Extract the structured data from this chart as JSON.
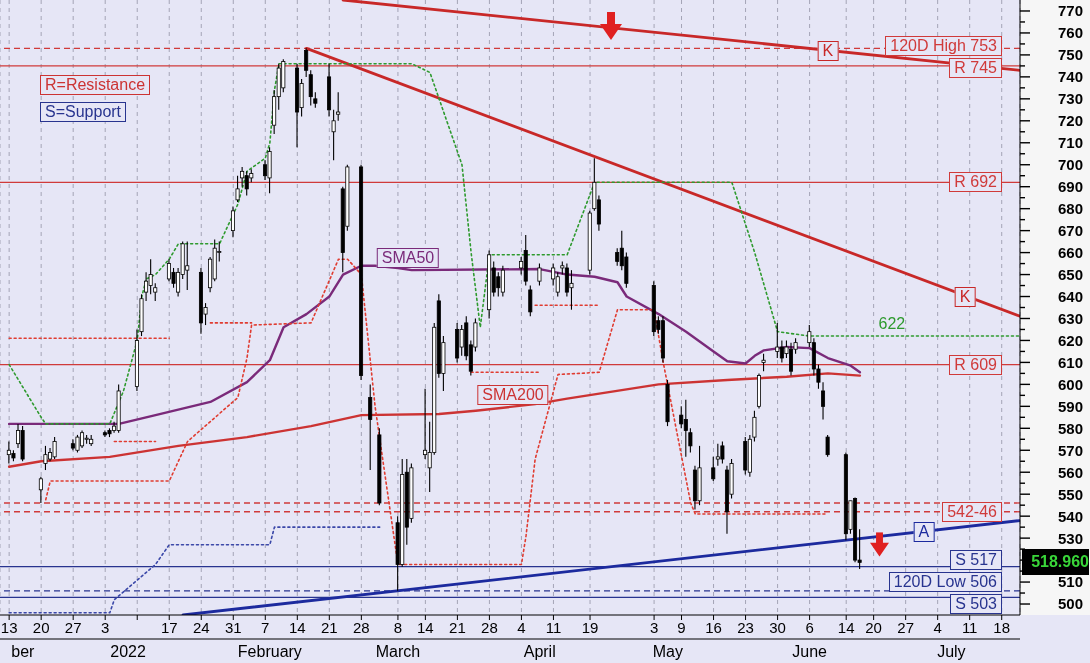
{
  "chart_data": {
    "type": "candlestick",
    "annotations": [
      "R=Resistance",
      "S=Support",
      "518.960",
      {
        "text": "K",
        "x": "2022-06-10",
        "y": 752
      },
      {
        "text": "K",
        "x": "2022-07-10",
        "y": 640
      },
      {
        "text": "A",
        "x": "2022-07-01",
        "y": 533
      },
      {
        "text": "622",
        "x": "2022-06-24",
        "y": 622
      }
    ],
    "x": [
      "2021-12-13",
      "2021-12-14",
      "2021-12-15",
      "2021-12-16",
      "2021-12-20",
      "2021-12-21",
      "2021-12-22",
      "2021-12-23",
      "2021-12-27",
      "2021-12-28",
      "2021-12-29",
      "2021-12-30",
      "2021-12-31",
      "2022-01-03",
      "2022-01-04",
      "2022-01-05",
      "2022-01-06",
      "2022-01-10",
      "2022-01-11",
      "2022-01-12",
      "2022-01-13",
      "2022-01-14",
      "2022-01-17",
      "2022-01-18",
      "2022-01-19",
      "2022-01-20",
      "2022-01-21",
      "2022-01-24",
      "2022-01-25",
      "2022-01-26",
      "2022-01-27",
      "2022-01-28",
      "2022-01-31",
      "2022-02-01",
      "2022-02-02",
      "2022-02-03",
      "2022-02-04",
      "2022-02-07",
      "2022-02-08",
      "2022-02-09",
      "2022-02-10",
      "2022-02-11",
      "2022-02-14",
      "2022-02-15",
      "2022-02-16",
      "2022-02-17",
      "2022-02-18",
      "2022-02-21",
      "2022-02-22",
      "2022-02-23",
      "2022-02-24",
      "2022-02-25",
      "2022-02-28",
      "2022-03-02",
      "2022-03-04",
      "2022-03-08",
      "2022-03-09",
      "2022-03-10",
      "2022-03-11",
      "2022-03-14",
      "2022-03-15",
      "2022-03-16",
      "2022-03-17",
      "2022-03-18",
      "2022-03-21",
      "2022-03-22",
      "2022-03-23",
      "2022-03-24",
      "2022-03-25",
      "2022-03-28",
      "2022-03-29",
      "2022-03-30",
      "2022-03-31",
      "2022-04-04",
      "2022-04-05",
      "2022-04-06",
      "2022-04-08",
      "2022-04-11",
      "2022-04-12",
      "2022-04-13",
      "2022-04-14",
      "2022-04-15",
      "2022-04-19",
      "2022-04-20",
      "2022-04-21",
      "2022-04-25",
      "2022-04-26",
      "2022-04-27",
      "2022-05-03",
      "2022-05-04",
      "2022-05-05",
      "2022-05-06",
      "2022-05-09",
      "2022-05-10",
      "2022-05-11",
      "2022-05-12",
      "2022-05-13",
      "2022-05-16",
      "2022-05-17",
      "2022-05-18",
      "2022-05-19",
      "2022-05-20",
      "2022-05-23",
      "2022-05-24",
      "2022-05-25",
      "2022-05-26",
      "2022-05-27",
      "2022-05-30",
      "2022-05-31",
      "2022-06-01",
      "2022-06-02",
      "2022-06-03",
      "2022-06-06",
      "2022-06-07",
      "2022-06-08",
      "2022-06-09",
      "2022-06-10",
      "2022-06-14",
      "2022-06-15",
      "2022-06-16",
      "2022-06-17"
    ],
    "ohlc": [
      [
        568,
        574,
        564,
        570
      ],
      [
        568.5,
        570,
        565,
        566.5
      ],
      [
        573,
        582,
        571,
        579
      ],
      [
        579,
        581,
        565,
        566
      ],
      [
        552,
        558,
        546,
        557
      ],
      [
        564,
        572,
        561,
        568
      ],
      [
        566,
        571,
        565,
        569
      ],
      [
        567,
        576,
        566,
        574
      ],
      [
        573,
        575,
        570,
        571
      ],
      [
        570,
        577,
        569,
        576
      ],
      [
        572,
        579,
        571,
        578
      ],
      [
        575,
        577,
        573,
        575.5
      ],
      [
        573,
        577,
        572,
        575
      ],
      [
        578,
        579,
        576,
        577
      ],
      [
        579,
        580,
        576,
        577.5
      ],
      [
        579,
        583,
        578,
        581
      ],
      [
        579,
        600,
        578,
        597
      ],
      [
        599,
        625,
        597,
        620
      ],
      [
        624,
        641,
        622,
        639
      ],
      [
        642,
        651,
        638,
        647
      ],
      [
        645,
        657,
        641,
        650
      ],
      [
        642,
        646,
        638,
        644
      ],
      [
        648,
        657,
        647,
        655
      ],
      [
        651,
        653,
        644,
        646
      ],
      [
        642,
        653,
        640,
        651
      ],
      [
        650,
        665,
        648,
        664
      ],
      [
        652,
        665,
        643,
        654
      ],
      [
        651,
        653,
        623,
        628
      ],
      [
        632,
        637,
        627,
        635
      ],
      [
        644,
        658,
        642,
        657
      ],
      [
        648,
        666,
        647,
        662
      ],
      [
        660,
        665,
        656,
        660.5
      ],
      [
        670,
        681,
        667,
        679
      ],
      [
        684,
        695,
        683,
        689
      ],
      [
        694,
        699,
        690,
        697
      ],
      [
        695,
        697,
        686,
        689
      ],
      [
        694,
        698,
        692,
        696
      ],
      [
        700,
        702,
        693,
        695
      ],
      [
        694,
        708,
        687,
        706
      ],
      [
        718,
        734,
        714,
        731
      ],
      [
        731,
        746,
        725,
        744
      ],
      [
        735,
        748,
        733,
        747
      ],
      [
        744,
        746,
        708,
        724
      ],
      [
        726,
        739,
        722,
        737
      ],
      [
        752,
        753,
        740,
        743
      ],
      [
        741,
        743,
        727,
        731
      ],
      [
        730,
        733,
        726,
        728
      ],
      [
        740,
        746,
        722,
        725
      ],
      [
        715,
        725,
        702,
        720
      ],
      [
        723,
        733,
        720,
        724
      ],
      [
        689,
        690,
        651,
        660
      ],
      [
        672,
        700,
        670,
        699
      ],
      [
        699,
        700,
        602,
        604
      ],
      [
        594,
        600,
        561,
        584
      ],
      [
        577,
        580,
        545,
        546
      ],
      [
        537,
        540,
        506,
        518
      ],
      [
        518,
        566,
        517,
        559
      ],
      [
        560,
        566,
        527,
        535
      ],
      [
        539,
        564,
        537,
        562
      ],
      [
        568,
        598,
        566,
        570
      ],
      [
        562,
        583,
        551,
        569
      ],
      [
        569,
        628,
        568,
        626
      ],
      [
        638,
        641,
        603,
        605
      ],
      [
        605,
        622,
        597,
        619
      ],
      [
        625,
        628,
        610,
        612
      ],
      [
        617,
        627,
        613,
        625
      ],
      [
        628,
        631,
        611,
        613
      ],
      [
        618,
        620,
        604,
        606
      ],
      [
        617,
        630,
        615,
        628
      ],
      [
        634,
        661,
        630,
        659
      ],
      [
        653,
        656,
        640,
        642
      ],
      [
        649,
        651,
        640,
        644
      ],
      [
        642,
        654,
        640,
        652
      ],
      [
        653,
        658,
        650,
        656
      ],
      [
        661,
        668,
        645,
        647
      ],
      [
        643,
        645,
        631,
        633
      ],
      [
        647,
        655,
        645,
        653
      ],
      [
        648,
        655,
        645,
        653
      ],
      [
        642,
        651,
        640,
        649
      ],
      [
        653,
        656,
        650,
        654
      ],
      [
        653,
        655,
        640,
        642
      ],
      [
        644,
        652,
        634,
        646
      ],
      [
        652,
        679,
        650,
        678
      ],
      [
        680,
        703,
        679,
        692
      ],
      [
        684,
        686,
        670,
        673
      ],
      [
        660,
        662,
        654,
        656
      ],
      [
        662,
        670,
        652,
        654
      ],
      [
        658,
        660,
        644,
        646
      ],
      [
        645,
        647,
        622,
        624
      ],
      [
        629,
        631,
        623,
        625
      ],
      [
        629,
        631,
        610,
        612
      ],
      [
        600,
        602,
        581,
        583
      ],
      [
        586,
        590,
        580,
        582
      ],
      [
        584,
        593,
        567,
        579
      ],
      [
        578,
        580,
        569,
        572
      ],
      [
        561,
        563,
        543,
        547
      ],
      [
        547,
        572,
        545,
        562
      ],
      [
        562,
        567,
        556,
        557
      ],
      [
        566,
        573,
        563,
        567
      ],
      [
        572,
        574,
        564,
        566
      ],
      [
        561,
        563,
        532,
        542
      ],
      [
        550,
        566,
        548,
        564
      ],
      [
        574,
        576,
        559,
        561
      ],
      [
        560,
        577,
        558,
        575
      ],
      [
        576,
        588,
        574,
        585
      ],
      [
        590,
        605,
        589,
        604
      ],
      [
        610,
        614,
        606,
        611
      ],
      [
        615,
        628,
        612,
        617
      ],
      [
        617,
        620,
        610,
        612
      ],
      [
        614,
        620,
        612,
        617
      ],
      [
        616,
        619,
        604,
        606
      ],
      [
        616,
        621,
        614,
        619
      ],
      [
        619,
        627,
        617,
        624
      ],
      [
        619,
        621,
        604,
        607
      ],
      [
        607,
        609,
        598,
        601
      ],
      [
        597,
        601,
        584,
        590
      ],
      [
        576,
        577,
        567,
        568
      ],
      [
        568,
        569,
        529,
        532
      ],
      [
        534,
        547,
        532,
        547
      ],
      [
        548,
        548.5,
        519,
        520
      ],
      [
        520,
        534,
        516,
        518.96
      ]
    ],
    "xlim": [
      "2021-12-11",
      "2022-07-22"
    ],
    "xticks": [
      {
        "value": "2021-12-13",
        "label": "13"
      },
      {
        "value": "2021-12-20",
        "label": "20"
      },
      {
        "value": "2021-12-27",
        "label": "27"
      },
      {
        "value": "2022-01-03",
        "label": "3"
      },
      {
        "value": "2022-01-10",
        "label": null
      },
      {
        "value": "2022-01-17",
        "label": "17"
      },
      {
        "value": "2022-01-24",
        "label": "24"
      },
      {
        "value": "2022-01-31",
        "label": "31"
      },
      {
        "value": "2022-02-07",
        "label": "7"
      },
      {
        "value": "2022-02-14",
        "label": "14"
      },
      {
        "value": "2022-02-21",
        "label": "21"
      },
      {
        "value": "2022-02-28",
        "label": "28"
      },
      {
        "value": "2022-03-08",
        "label": "8"
      },
      {
        "value": "2022-03-14",
        "label": "14"
      },
      {
        "value": "2022-03-21",
        "label": "21"
      },
      {
        "value": "2022-03-28",
        "label": "28"
      },
      {
        "value": "2022-04-04",
        "label": "4"
      },
      {
        "value": "2022-04-11",
        "label": "11"
      },
      {
        "value": "2022-04-19",
        "label": "19"
      },
      {
        "value": "2022-05-03",
        "label": "3"
      },
      {
        "value": "2022-05-09",
        "label": "9"
      },
      {
        "value": "2022-05-16",
        "label": "16"
      },
      {
        "value": "2022-05-23",
        "label": "23"
      },
      {
        "value": "2022-05-30",
        "label": "30"
      },
      {
        "value": "2022-06-06",
        "label": "6"
      },
      {
        "value": "2022-06-14",
        "label": "14"
      },
      {
        "value": "2022-06-20",
        "label": "20"
      },
      {
        "value": "2022-06-27",
        "label": "27"
      },
      {
        "value": "2022-07-04",
        "label": "4"
      },
      {
        "value": "2022-07-11",
        "label": "11"
      },
      {
        "value": "2022-07-18",
        "label": "18"
      }
    ],
    "x2lim": [
      "2021-12-11",
      "2022-07-22"
    ],
    "x2ticks": [
      {
        "value": "2021-12-16",
        "label": "ber"
      },
      {
        "value": "2022-01-08",
        "label": "2022"
      },
      {
        "value": "2022-02-08",
        "label": "February"
      },
      {
        "value": "2022-03-08",
        "label": "March"
      },
      {
        "value": "2022-04-08",
        "label": "April"
      },
      {
        "value": "2022-05-06",
        "label": "May"
      },
      {
        "value": "2022-06-06",
        "label": "June"
      },
      {
        "value": "2022-07-07",
        "label": "July"
      }
    ],
    "ylim": [
      495,
      775
    ],
    "yticks": [
      500,
      {
        "value": 505,
        "label": null
      },
      510,
      {
        "value": 515,
        "label": null
      },
      {
        "value": 520,
        "label": null
      },
      {
        "value": 525,
        "label": null
      },
      530,
      {
        "value": 535,
        "label": null
      },
      540,
      {
        "value": 545,
        "label": null
      },
      550,
      {
        "value": 555,
        "label": null
      },
      560,
      {
        "value": 565,
        "label": null
      },
      570,
      {
        "value": 575,
        "label": null
      },
      580,
      {
        "value": 585,
        "label": null
      },
      590,
      {
        "value": 595,
        "label": null
      },
      600,
      {
        "value": 605,
        "label": null
      },
      610,
      {
        "value": 615,
        "label": null
      },
      620,
      {
        "value": 625,
        "label": null
      },
      630,
      {
        "value": 635,
        "label": null
      },
      640,
      {
        "value": 645,
        "label": null
      },
      650,
      {
        "value": 655,
        "label": null
      },
      660,
      {
        "value": 665,
        "label": null
      },
      670,
      {
        "value": 675,
        "label": null
      },
      680,
      {
        "value": 685,
        "label": null
      },
      690,
      {
        "value": 695,
        "label": null
      },
      700,
      {
        "value": 705,
        "label": null
      },
      710,
      {
        "value": 715,
        "label": null
      },
      720,
      {
        "value": 725,
        "label": null
      },
      730,
      {
        "value": 735,
        "label": null
      },
      740,
      {
        "value": 745,
        "label": null
      },
      750,
      {
        "value": 755,
        "label": null
      },
      760,
      {
        "value": 765,
        "label": null
      },
      770
    ],
    "grid": "x",
    "series": [
      {
        "name": "SMA50",
        "type": "line",
        "color": "#7a2a7a",
        "x": [
          "2021-12-13",
          "2022-01-06",
          "2022-01-14",
          "2022-01-26",
          "2022-02-03",
          "2022-02-08",
          "2022-02-11",
          "2022-02-16",
          "2022-02-21",
          "2022-02-24",
          "2022-02-28",
          "2022-03-03",
          "2022-03-08",
          "2022-03-11",
          "2022-04-08",
          "2022-04-14",
          "2022-04-20",
          "2022-04-25",
          "2022-04-27",
          "2022-05-04",
          "2022-05-10",
          "2022-05-16",
          "2022-05-19",
          "2022-05-23",
          "2022-05-25",
          "2022-05-27",
          "2022-06-01",
          "2022-06-06",
          "2022-06-10",
          "2022-06-15",
          "2022-06-17"
        ],
        "values": [
          582,
          582,
          586,
          592,
          601,
          611,
          626,
          632,
          640,
          650,
          654,
          654,
          653,
          652,
          652.5,
          650,
          649,
          646.5,
          640,
          632,
          624,
          615,
          610.5,
          609.5,
          613,
          615.5,
          617,
          616.5,
          612,
          608.5,
          605.5
        ]
      },
      {
        "name": "SMA200",
        "type": "line",
        "color": "#cc3333",
        "x": [
          "2021-12-13",
          "2021-12-20",
          "2022-01-04",
          "2022-01-19",
          "2022-02-03",
          "2022-02-17",
          "2022-02-28",
          "2022-03-17",
          "2022-03-25",
          "2022-04-07",
          "2022-04-14",
          "2022-05-04",
          "2022-05-19",
          "2022-06-01",
          "2022-06-10",
          "2022-06-17"
        ],
        "values": [
          562.5,
          565,
          567,
          572,
          576,
          581,
          586,
          586.5,
          588,
          591,
          593.5,
          600,
          602,
          603.5,
          605,
          604
        ]
      },
      {
        "type": "line",
        "color": "#c82828",
        "x": [
          "2022-02-24",
          "2022-07-22"
        ],
        "values": [
          775,
          743
        ]
      },
      {
        "type": "line",
        "color": "#c82828",
        "x": [
          "2022-02-16",
          "2022-07-22"
        ],
        "values": [
          753,
          631
        ]
      },
      {
        "type": "line",
        "color": "#1c2a9e",
        "x": [
          "2022-01-20",
          "2022-07-22"
        ],
        "values": [
          495,
          538
        ]
      },
      {
        "type": "line",
        "color": "#2e9a2e",
        "line_style": "dotted",
        "x": [
          "2021-12-13",
          "2021-12-20",
          "2021-12-21",
          "2022-01-04",
          "2022-01-07",
          "2022-01-10",
          "2022-01-11",
          "2022-01-12",
          "2022-01-14",
          "2022-01-17",
          "2022-01-19",
          "2022-01-28",
          "2022-02-01",
          "2022-02-03",
          "2022-02-07",
          "2022-02-08",
          "2022-02-09",
          "2022-02-10",
          "2022-03-11",
          "2022-03-15",
          "2022-03-17",
          "2022-03-22",
          "2022-03-24",
          "2022-03-26",
          "2022-03-28",
          "2022-04-14",
          "2022-04-20",
          "2022-05-20",
          "2022-05-25",
          "2022-05-30",
          "2022-06-06",
          "2022-07-22"
        ],
        "values": [
          609,
          585,
          582,
          582,
          597,
          620,
          640,
          648,
          650,
          657,
          664,
          664,
          682,
          697,
          703,
          710,
          734,
          746,
          746,
          742,
          730,
          700,
          660,
          626,
          659,
          659,
          692,
          692,
          660,
          624,
          622,
          622
        ]
      },
      {
        "type": "line",
        "color": "#e03c31",
        "line_style": "dotted",
        "x": [
          "2021-12-21",
          "2021-12-22",
          "2022-01-17",
          "2022-01-21",
          "2022-02-01",
          "2022-02-03",
          "2022-02-04",
          "2022-02-17",
          "2022-02-23",
          "2022-02-25",
          "2022-02-28",
          "2022-03-03",
          "2022-03-08",
          "2022-04-04",
          "2022-04-05",
          "2022-04-07",
          "2022-04-12",
          "2022-04-21",
          "2022-04-25",
          "2022-05-03",
          "2022-05-05",
          "2022-05-11",
          "2022-05-12",
          "2022-06-10"
        ],
        "values": [
          547.5,
          556,
          556,
          574,
          594,
          612,
          627,
          628,
          657,
          657,
          650,
          590,
          518,
          518,
          531,
          566,
          604.5,
          605.5,
          634,
          634,
          610,
          546,
          541,
          541
        ]
      },
      {
        "type": "line",
        "color": "#e03c31",
        "line_style": "dotted",
        "x": [
          "2021-12-13",
          "2022-01-17"
        ],
        "values": [
          621,
          621
        ]
      },
      {
        "type": "line",
        "color": "#e03c31",
        "line_style": "dotted",
        "x": [
          "2022-01-05",
          "2022-01-14"
        ],
        "values": [
          574,
          574
        ]
      },
      {
        "type": "line",
        "color": "#e03c31",
        "line_style": "dotted",
        "x": [
          "2022-01-26",
          "2022-02-04"
        ],
        "values": [
          628,
          628
        ]
      },
      {
        "type": "line",
        "color": "#e03c31",
        "line_style": "dotted",
        "x": [
          "2022-03-24",
          "2022-04-08"
        ],
        "values": [
          605.5,
          605.5
        ]
      },
      {
        "type": "line",
        "color": "#e03c31",
        "line_style": "dotted",
        "x": [
          "2022-04-07",
          "2022-04-21"
        ],
        "values": [
          636,
          636
        ]
      },
      {
        "type": "line",
        "color": "#3a47a8",
        "line_style": "dotted",
        "x": [
          "2021-12-13",
          "2022-01-04",
          "2022-01-05",
          "2022-01-14",
          "2022-01-17",
          "2022-02-08",
          "2022-02-09",
          "2022-03-04"
        ],
        "values": [
          496,
          496,
          502,
          518,
          527,
          527,
          535,
          535
        ]
      }
    ],
    "ref_lines": [
      {
        "axis": "y",
        "value": 753,
        "label": "120D High 753",
        "color": "#d03a3a",
        "line_style": "dashed"
      },
      {
        "axis": "y",
        "value": 745,
        "label": "R 745",
        "color": "#d03a3a",
        "line_style": "solid"
      },
      {
        "axis": "y",
        "value": 692,
        "label": "R 692",
        "color": "#d03a3a",
        "line_style": "solid"
      },
      {
        "axis": "y",
        "value": 609,
        "label": "R 609",
        "color": "#d03a3a",
        "line_style": "solid"
      },
      {
        "axis": "y",
        "value": 546,
        "color": "#d03a3a",
        "line_style": "dashed"
      },
      {
        "axis": "y",
        "value": 542,
        "label": "542-46",
        "color": "#d03a3a",
        "line_style": "dashed"
      },
      {
        "axis": "y",
        "value": 517,
        "label": "S 517",
        "color": "#28348f",
        "line_style": "solid"
      },
      {
        "axis": "y",
        "value": 506,
        "label": "120D Low 506",
        "color": "#28348f",
        "line_style": "dashed"
      },
      {
        "axis": "y",
        "value": 503,
        "label": "S 503",
        "color": "#28348f",
        "line_style": "solid"
      }
    ]
  }
}
